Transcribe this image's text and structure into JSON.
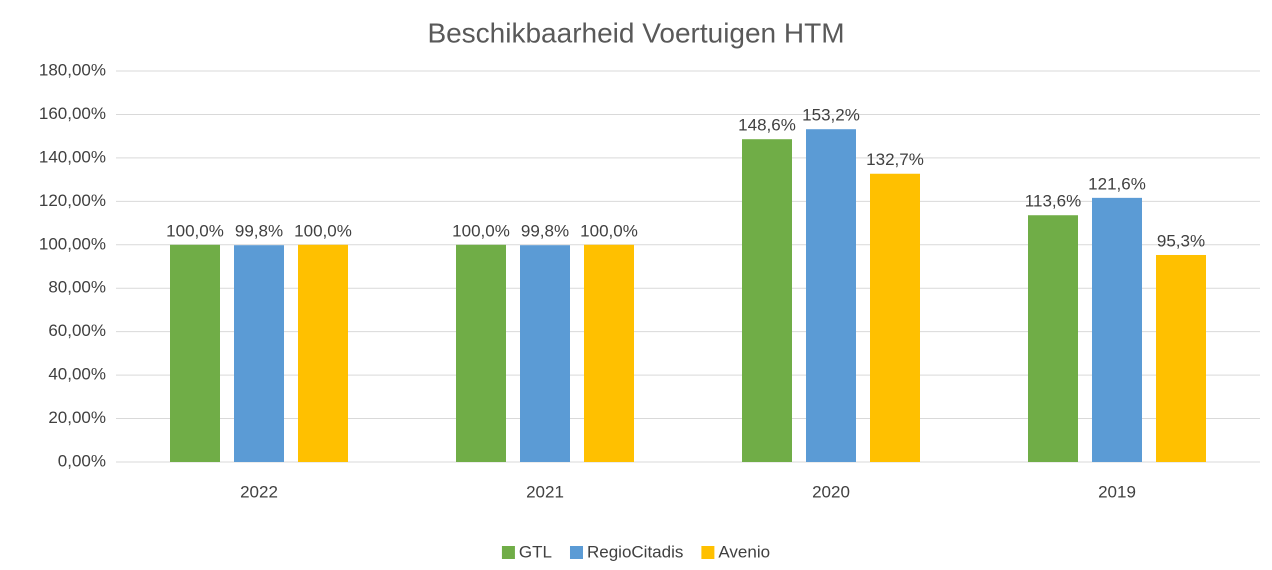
{
  "chart_data": {
    "type": "bar",
    "title": "Beschikbaarheid Voertuigen HTM",
    "categories": [
      "2022",
      "2021",
      "2020",
      "2019"
    ],
    "series": [
      {
        "name": "GTL",
        "color": "#70ad47",
        "values": [
          100.0,
          100.0,
          148.6,
          113.6
        ],
        "value_labels": [
          "100,0%",
          "100,0%",
          "148,6%",
          "113,6%"
        ]
      },
      {
        "name": "RegioCitadis",
        "color": "#5b9bd5",
        "values": [
          99.8,
          99.8,
          153.2,
          121.6
        ],
        "value_labels": [
          "99,8%",
          "99,8%",
          "153,2%",
          "121,6%"
        ]
      },
      {
        "name": "Avenio",
        "color": "#ffc000",
        "values": [
          100.0,
          100.0,
          132.7,
          95.3
        ],
        "value_labels": [
          "100,0%",
          "100,0%",
          "132,7%",
          "95,3%"
        ]
      }
    ],
    "ylim": [
      0,
      180
    ],
    "yticks": [
      {
        "value": 0,
        "label": "0,00%"
      },
      {
        "value": 20,
        "label": "20,00%"
      },
      {
        "value": 40,
        "label": "40,00%"
      },
      {
        "value": 60,
        "label": "60,00%"
      },
      {
        "value": 80,
        "label": "80,00%"
      },
      {
        "value": 100,
        "label": "100,00%"
      },
      {
        "value": 120,
        "label": "120,00%"
      },
      {
        "value": 140,
        "label": "140,00%"
      },
      {
        "value": 160,
        "label": "160,00%"
      },
      {
        "value": 180,
        "label": "180,00%"
      }
    ],
    "grid": true,
    "legend": "bottom"
  }
}
